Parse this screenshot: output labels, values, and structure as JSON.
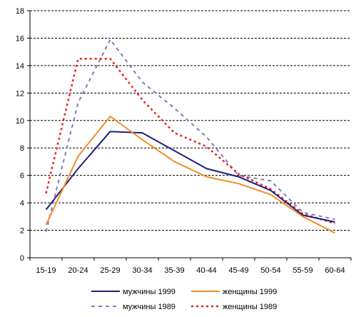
{
  "chart_data": {
    "type": "line",
    "title": "",
    "xlabel": "",
    "ylabel": "",
    "categories": [
      "15-19",
      "20-24",
      "25-29",
      "30-34",
      "35-39",
      "40-44",
      "45-49",
      "50-54",
      "55-59",
      "60-64"
    ],
    "ylim": [
      0,
      18
    ],
    "yticks": [
      "0",
      "2",
      "4",
      "6",
      "8",
      "10",
      "12",
      "14",
      "16",
      "18"
    ],
    "grid": "horizontal dashed",
    "legend_position": "bottom",
    "series": [
      {
        "name": "мужчины 1999",
        "color": "#1f1f7a",
        "style": "solid",
        "values": [
          3.5,
          6.5,
          9.2,
          9.1,
          7.8,
          6.5,
          5.9,
          4.9,
          3.1,
          2.6
        ]
      },
      {
        "name": "женщины 1999",
        "color": "#f28c28",
        "style": "solid",
        "values": [
          2.4,
          7.4,
          10.3,
          8.6,
          7.0,
          5.9,
          5.4,
          4.6,
          3.0,
          1.8
        ]
      },
      {
        "name": "мужчины 1989",
        "color": "#7b7bc4",
        "style": "dashed",
        "values": [
          1.9,
          11.3,
          15.9,
          12.8,
          10.9,
          8.8,
          6.0,
          5.6,
          3.3,
          2.8
        ]
      },
      {
        "name": "женщины 1989",
        "color": "#e8201f",
        "style": "dotted",
        "values": [
          4.7,
          14.5,
          14.5,
          11.5,
          9.1,
          8.1,
          6.1,
          5.0,
          3.2,
          2.5
        ]
      }
    ]
  }
}
